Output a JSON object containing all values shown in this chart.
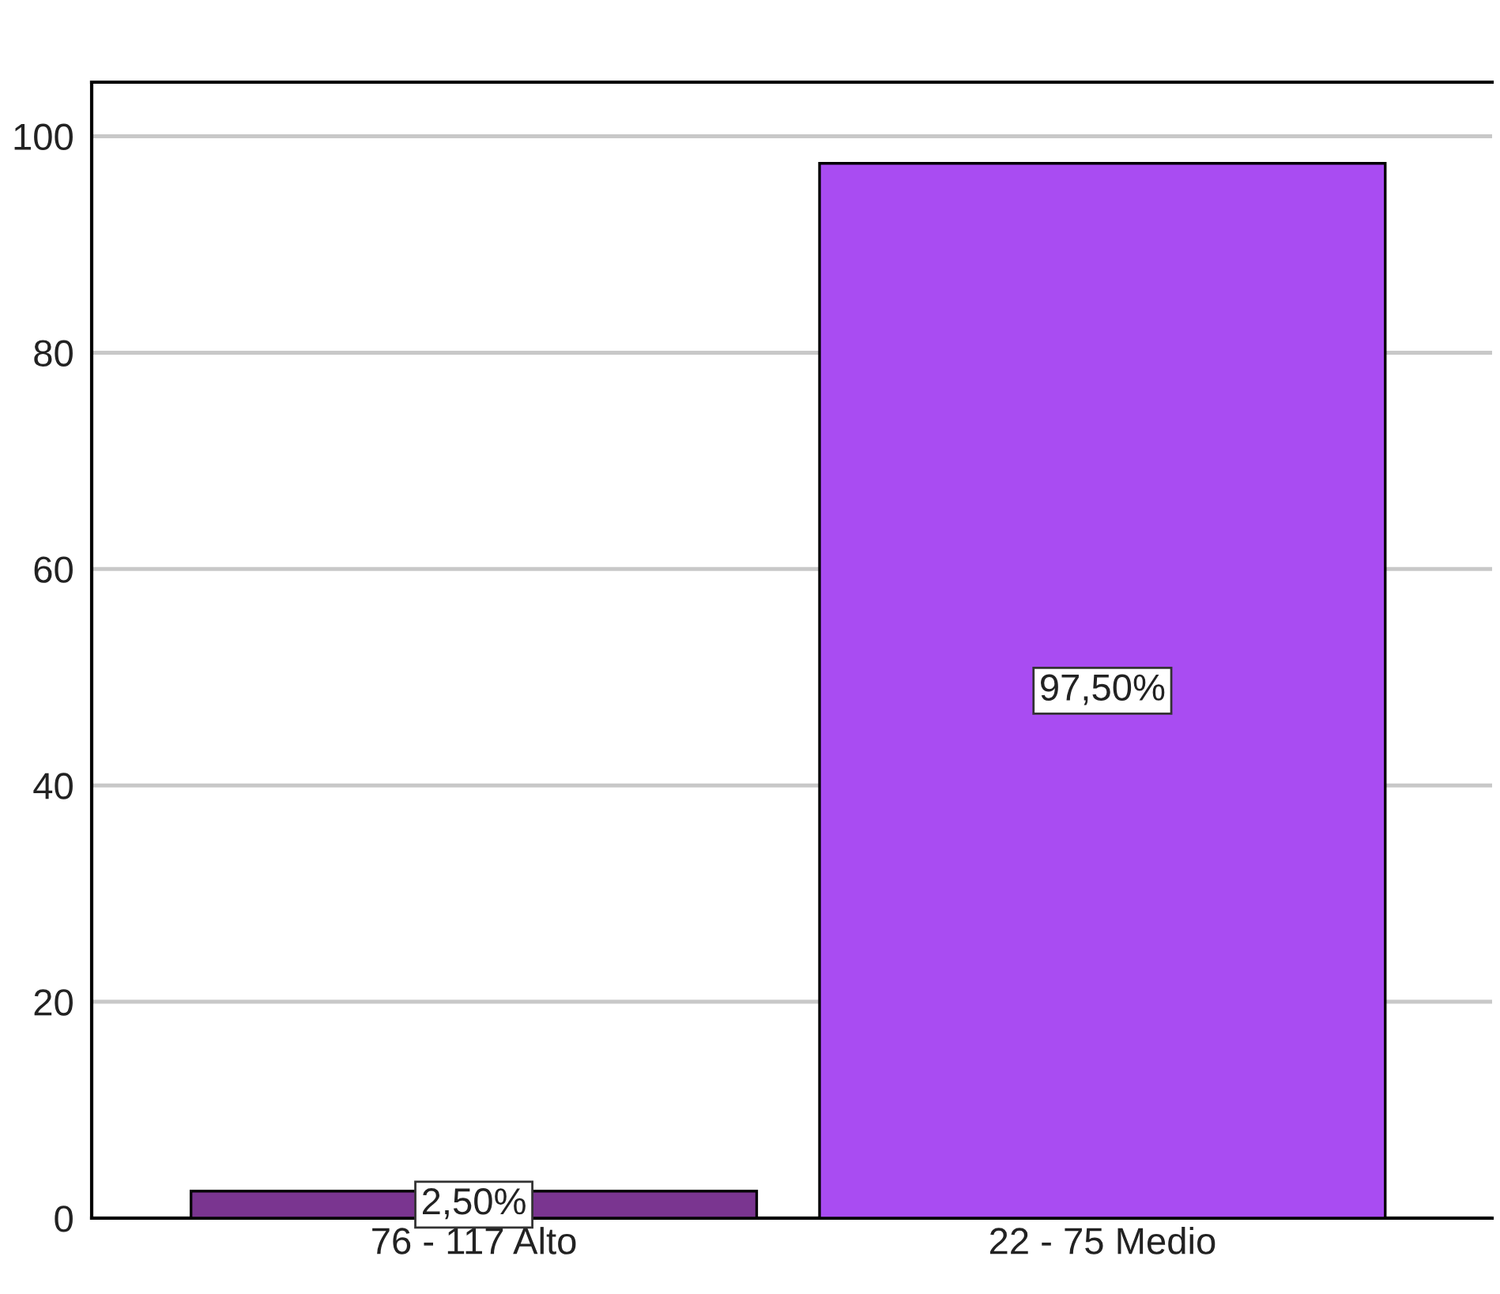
{
  "chart_data": {
    "type": "bar",
    "categories": [
      "76 - 117 Alto",
      "22 - 75 Medio"
    ],
    "values": [
      2.5,
      97.5
    ],
    "colors": [
      "#7a3590",
      "#a94cf2"
    ],
    "value_labels": [
      "2,50%",
      "97,50%"
    ],
    "ylim": [
      0,
      105
    ],
    "yticks": [
      0,
      20,
      40,
      60,
      80,
      100
    ],
    "grid": "y"
  }
}
